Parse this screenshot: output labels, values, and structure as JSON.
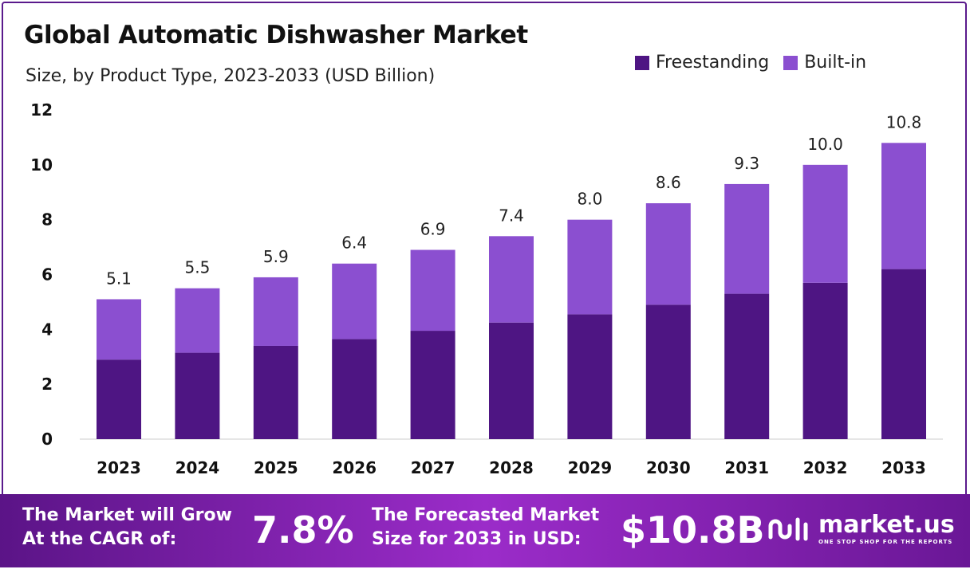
{
  "header": {
    "title": "Global Automatic Dishwasher Market",
    "subtitle": "Size, by Product Type, 2023-2033 (USD Billion)"
  },
  "legend": [
    {
      "label": "Freestanding",
      "color": "#4e1583"
    },
    {
      "label": "Built-in",
      "color": "#8b4fd0"
    }
  ],
  "chart_data": {
    "type": "bar",
    "stacked": true,
    "categories": [
      "2023",
      "2024",
      "2025",
      "2026",
      "2027",
      "2028",
      "2029",
      "2030",
      "2031",
      "2032",
      "2033"
    ],
    "series": [
      {
        "name": "Freestanding",
        "color": "#4e1583",
        "values": [
          2.9,
          3.15,
          3.4,
          3.65,
          3.95,
          4.25,
          4.55,
          4.9,
          5.3,
          5.7,
          6.2
        ]
      },
      {
        "name": "Built-in",
        "color": "#8b4fd0",
        "values": [
          2.2,
          2.35,
          2.5,
          2.75,
          2.95,
          3.15,
          3.45,
          3.7,
          4.0,
          4.3,
          4.6
        ]
      }
    ],
    "totals": [
      "5.1",
      "5.5",
      "5.9",
      "6.4",
      "6.9",
      "7.4",
      "8.0",
      "8.6",
      "9.3",
      "10.0",
      "10.8"
    ],
    "yticks": [
      "0",
      "2",
      "4",
      "6",
      "8",
      "10",
      "12"
    ],
    "ylim": [
      0,
      12
    ],
    "grid": false,
    "legend_position": "top-right"
  },
  "footer": {
    "cagr_label": "The Market will Grow\nAt the CAGR of:",
    "cagr_value": "7.8%",
    "forecast_label": "The Forecasted Market\nSize for 2033 in USD:",
    "forecast_value": "$10.8B",
    "logo_name": "market.us",
    "logo_tagline": "ONE STOP SHOP FOR THE REPORTS"
  }
}
